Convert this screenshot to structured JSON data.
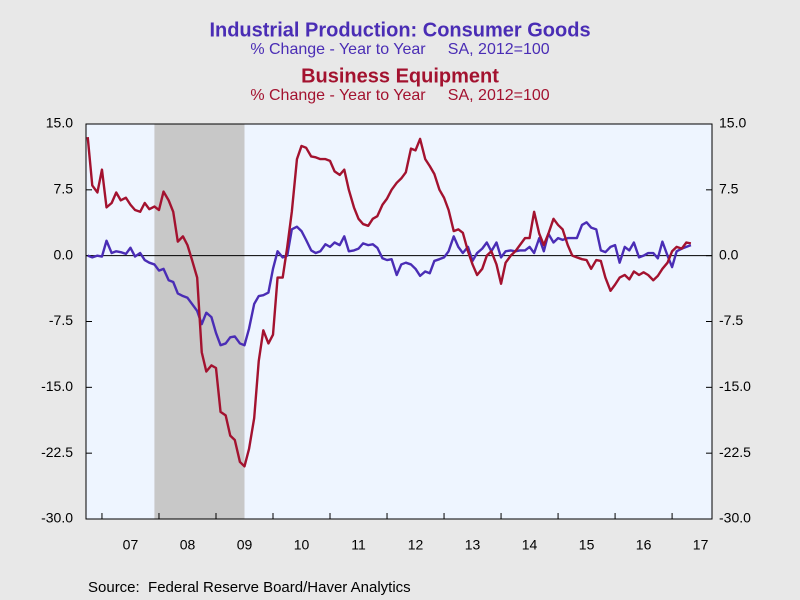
{
  "chart_data": {
    "type": "line",
    "source": "Source:  Federal Reserve Board/Haver Analytics",
    "x": [
      2006.75,
      2006.83,
      2006.92,
      2007.0,
      2007.08,
      2007.17,
      2007.25,
      2007.33,
      2007.42,
      2007.5,
      2007.58,
      2007.67,
      2007.75,
      2007.83,
      2007.92,
      2008.0,
      2008.08,
      2008.17,
      2008.25,
      2008.33,
      2008.42,
      2008.5,
      2008.58,
      2008.67,
      2008.75,
      2008.83,
      2008.92,
      2009.0,
      2009.08,
      2009.17,
      2009.25,
      2009.33,
      2009.42,
      2009.5,
      2009.58,
      2009.67,
      2009.75,
      2009.83,
      2009.92,
      2010.0,
      2010.08,
      2010.17,
      2010.25,
      2010.33,
      2010.42,
      2010.5,
      2010.58,
      2010.67,
      2010.75,
      2010.83,
      2010.92,
      2011.0,
      2011.08,
      2011.17,
      2011.25,
      2011.33,
      2011.42,
      2011.5,
      2011.58,
      2011.67,
      2011.75,
      2011.83,
      2011.92,
      2012.0,
      2012.08,
      2012.17,
      2012.25,
      2012.33,
      2012.42,
      2012.5,
      2012.58,
      2012.67,
      2012.75,
      2012.83,
      2012.92,
      2013.0,
      2013.08,
      2013.17,
      2013.25,
      2013.33,
      2013.42,
      2013.5,
      2013.58,
      2013.67,
      2013.75,
      2013.83,
      2013.92,
      2014.0,
      2014.08,
      2014.17,
      2014.25,
      2014.33,
      2014.42,
      2014.5,
      2014.58,
      2014.67,
      2014.75,
      2014.83,
      2014.92,
      2015.0,
      2015.08,
      2015.17,
      2015.25,
      2015.33,
      2015.42,
      2015.5,
      2015.58,
      2015.67,
      2015.75,
      2015.83,
      2015.92,
      2016.0,
      2016.08,
      2016.17,
      2016.25,
      2016.33,
      2016.42,
      2016.5,
      2016.58,
      2016.67,
      2016.75,
      2016.83,
      2016.92,
      2017.0,
      2017.08,
      2017.17,
      2017.25,
      2017.33
    ],
    "series": [
      {
        "name": "Industrial Production: Consumer Goods",
        "subtitle": "% Change - Year to Year     SA, 2012=100",
        "color": "#4a2db5",
        "values": [
          0.0,
          -0.2,
          0.0,
          -0.1,
          1.7,
          0.3,
          0.5,
          0.4,
          0.2,
          0.9,
          -0.1,
          0.3,
          -0.5,
          -0.8,
          -1.0,
          -1.7,
          -1.5,
          -2.8,
          -3.0,
          -4.3,
          -4.6,
          -4.8,
          -5.5,
          -6.3,
          -7.8,
          -6.5,
          -7.0,
          -8.8,
          -10.2,
          -10.0,
          -9.3,
          -9.2,
          -10.0,
          -10.2,
          -8.3,
          -5.5,
          -4.6,
          -4.5,
          -4.2,
          -1.5,
          0.5,
          -0.2,
          0.0,
          3.0,
          3.3,
          2.8,
          1.8,
          0.6,
          0.3,
          0.5,
          1.3,
          1.0,
          1.5,
          1.2,
          2.2,
          0.5,
          0.6,
          0.8,
          1.4,
          1.2,
          1.3,
          0.9,
          -0.3,
          -0.5,
          -0.4,
          -2.2,
          -1.0,
          -0.8,
          -1.0,
          -1.5,
          -2.3,
          -1.8,
          -2.0,
          -0.6,
          -0.4,
          -0.2,
          0.5,
          2.2,
          1.0,
          0.3,
          1.0,
          -0.6,
          0.3,
          0.8,
          1.5,
          0.5,
          1.5,
          -0.2,
          0.5,
          0.6,
          0.5,
          0.6,
          0.6,
          1.0,
          0.3,
          2.0,
          0.5,
          2.5,
          1.5,
          2.0,
          1.8,
          2.0,
          2.0,
          2.0,
          3.5,
          3.8,
          3.2,
          3.0,
          0.6,
          0.4,
          1.0,
          1.2,
          -0.8,
          1.0,
          0.6,
          1.5,
          -0.2,
          0.0,
          0.3,
          0.3,
          -0.3,
          1.6,
          0.0,
          -1.3,
          0.5,
          0.8,
          1.0,
          1.2
        ]
      },
      {
        "name": "Business Equipment",
        "subtitle": "% Change - Year to Year     SA, 2012=100",
        "color": "#a3122f",
        "values": [
          13.5,
          8.0,
          7.2,
          9.8,
          5.5,
          6.0,
          7.2,
          6.3,
          6.6,
          5.8,
          5.2,
          5.0,
          6.0,
          5.3,
          5.6,
          5.2,
          7.3,
          6.3,
          5.0,
          1.6,
          2.2,
          1.2,
          -0.5,
          -2.5,
          -11.0,
          -13.2,
          -12.5,
          -12.8,
          -17.8,
          -18.2,
          -20.5,
          -21.0,
          -23.5,
          -24.0,
          -22.0,
          -18.5,
          -12.0,
          -8.5,
          -10.0,
          -9.0,
          -2.5,
          -2.5,
          1.0,
          5.0,
          11.0,
          12.5,
          12.3,
          11.3,
          11.2,
          11.0,
          11.0,
          10.8,
          9.6,
          9.2,
          9.8,
          7.5,
          5.5,
          4.2,
          3.6,
          3.4,
          4.2,
          4.5,
          5.8,
          6.5,
          7.5,
          8.3,
          8.8,
          9.5,
          12.2,
          12.0,
          13.3,
          11.0,
          10.2,
          9.3,
          7.5,
          6.6,
          5.2,
          2.8,
          3.0,
          2.6,
          0.5,
          -1.0,
          -2.2,
          -1.5,
          0.0,
          0.5,
          -1.0,
          -3.2,
          -0.8,
          0.0,
          0.5,
          1.2,
          2.0,
          2.0,
          5.0,
          2.5,
          1.2,
          2.5,
          4.2,
          3.5,
          3.0,
          1.2,
          0.0,
          -0.2,
          -0.4,
          -0.5,
          -1.5,
          -0.5,
          -0.6,
          -2.5,
          -4.0,
          -3.3,
          -2.5,
          -2.2,
          -2.7,
          -1.8,
          -2.2,
          -1.9,
          -2.2,
          -2.8,
          -2.3,
          -1.5,
          -0.8,
          0.5,
          1.0,
          0.8,
          1.5,
          1.4
        ]
      }
    ],
    "xlim": [
      2006.72,
      2017.7
    ],
    "xticks": [
      {
        "value": 2007.5,
        "label": "07"
      },
      {
        "value": 2008.5,
        "label": "08"
      },
      {
        "value": 2009.5,
        "label": "09"
      },
      {
        "value": 2010.5,
        "label": "10"
      },
      {
        "value": 2011.5,
        "label": "11"
      },
      {
        "value": 2012.5,
        "label": "12"
      },
      {
        "value": 2013.5,
        "label": "13"
      },
      {
        "value": 2014.5,
        "label": "14"
      },
      {
        "value": 2015.5,
        "label": "15"
      },
      {
        "value": 2016.5,
        "label": "16"
      },
      {
        "value": 2017.5,
        "label": "17"
      }
    ],
    "xminorticks": [
      2007,
      2008,
      2009,
      2010,
      2011,
      2012,
      2013,
      2014,
      2015,
      2016,
      2017
    ],
    "ylim": [
      -30,
      15
    ],
    "yticks": [
      {
        "value": 15,
        "label": "15.0"
      },
      {
        "value": 7.5,
        "label": "7.5"
      },
      {
        "value": 0,
        "label": "0.0"
      },
      {
        "value": -7.5,
        "label": "-7.5"
      },
      {
        "value": -15,
        "label": "-15.0"
      },
      {
        "value": -22.5,
        "label": "-22.5"
      },
      {
        "value": -30,
        "label": "-30.0"
      }
    ],
    "y2lim": [
      -30,
      15
    ],
    "y2ticks": [
      {
        "value": 15,
        "label": "15.0"
      },
      {
        "value": 7.5,
        "label": "7.5"
      },
      {
        "value": 0,
        "label": "0.0"
      },
      {
        "value": -7.5,
        "label": "-7.5"
      },
      {
        "value": -15,
        "label": "-15.0"
      },
      {
        "value": -22.5,
        "label": "-22.5"
      },
      {
        "value": -30,
        "label": "-30.0"
      }
    ],
    "recession": [
      2007.92,
      2009.5
    ],
    "recession_color": "#c8c8c8",
    "zero_line": true,
    "plot_background": "#eef5ff"
  }
}
